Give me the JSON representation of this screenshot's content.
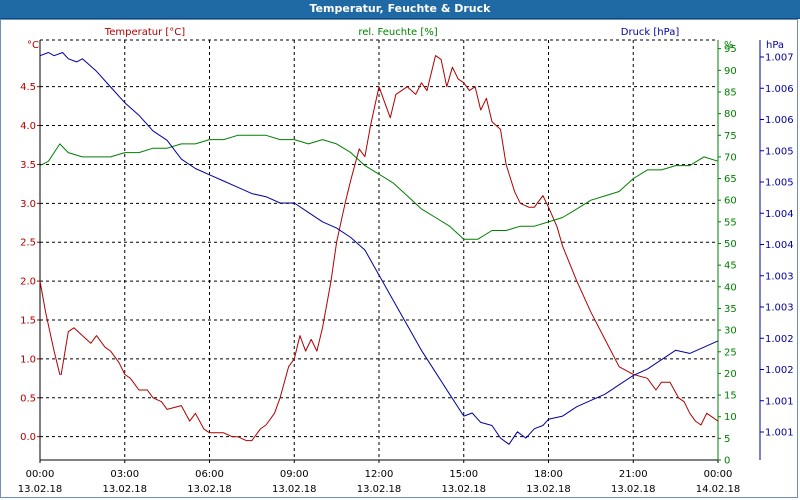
{
  "window": {
    "title": "Temperatur, Feuchte & Druck"
  },
  "colors": {
    "temperature": "#b00000",
    "humidity": "#008000",
    "pressure": "#0000a0",
    "grid": "#000000"
  },
  "chart_data": {
    "type": "line",
    "grid": true,
    "x_ticks": [
      {
        "time": "00:00",
        "date": "13.02.18"
      },
      {
        "time": "03:00",
        "date": "13.02.18"
      },
      {
        "time": "06:00",
        "date": "13.02.18"
      },
      {
        "time": "09:00",
        "date": "13.02.18"
      },
      {
        "time": "12:00",
        "date": "13.02.18"
      },
      {
        "time": "15:00",
        "date": "13.02.18"
      },
      {
        "time": "18:00",
        "date": "13.02.18"
      },
      {
        "time": "21:00",
        "date": "13.02.18"
      },
      {
        "time": "00:00",
        "date": "14.02.18"
      }
    ],
    "x_range_hours": [
      0,
      24
    ],
    "axes": {
      "temperature": {
        "label": "Temperatur [°C]",
        "unit": "°C",
        "ylim": [
          -0.3,
          5.1
        ],
        "ticks": [
          "0.0",
          "0.5",
          "1.0",
          "1.5",
          "2.0",
          "2.5",
          "3.0",
          "3.5",
          "4.0",
          "4.5"
        ]
      },
      "humidity": {
        "label": "rel. Feuchte [%]",
        "unit": "%",
        "ylim": [
          0,
          97
        ],
        "ticks": [
          "0",
          "5",
          "10",
          "15",
          "20",
          "25",
          "30",
          "35",
          "40",
          "45",
          "50",
          "55",
          "60",
          "65",
          "70",
          "75",
          "80",
          "85",
          "90",
          "95"
        ]
      },
      "pressure": {
        "label": "Druck [hPa]",
        "unit": "hPa",
        "ylim": [
          1000.5,
          1007.2
        ],
        "ticks": [
          "1.001",
          "1.001",
          "1.002",
          "1.002",
          "1.003",
          "1.003",
          "1.004",
          "1.004",
          "1.005",
          "1.005",
          "1.006",
          "1.006",
          "1.007"
        ]
      }
    },
    "series": [
      {
        "name": "Temperatur [°C]",
        "axis": "temperature",
        "x": [
          0,
          0.2,
          0.5,
          0.7,
          0.75,
          1.0,
          1.2,
          1.5,
          1.8,
          2.0,
          2.3,
          2.5,
          2.8,
          3.0,
          3.2,
          3.5,
          3.8,
          4.0,
          4.3,
          4.5,
          5.0,
          5.3,
          5.5,
          5.8,
          6.0,
          6.5,
          6.8,
          7.0,
          7.3,
          7.5,
          7.8,
          8.0,
          8.3,
          8.5,
          8.8,
          9.0,
          9.2,
          9.4,
          9.6,
          9.8,
          10.0,
          10.3,
          10.5,
          10.8,
          11.0,
          11.3,
          11.5,
          11.7,
          12.0,
          12.2,
          12.4,
          12.6,
          12.8,
          13.0,
          13.3,
          13.5,
          13.7,
          14.0,
          14.2,
          14.4,
          14.6,
          14.8,
          15.0,
          15.2,
          15.4,
          15.6,
          15.8,
          16.0,
          16.3,
          16.5,
          16.8,
          17.0,
          17.3,
          17.5,
          17.8,
          18.0,
          18.3,
          18.5,
          19.0,
          19.5,
          20.0,
          20.5,
          21.0,
          21.5,
          21.8,
          22.0,
          22.3,
          22.6,
          22.8,
          23.0,
          23.2,
          23.4,
          23.6,
          23.8,
          24.0
        ],
        "values": [
          2.0,
          1.6,
          1.1,
          0.8,
          0.8,
          1.35,
          1.4,
          1.3,
          1.2,
          1.3,
          1.15,
          1.1,
          0.95,
          0.8,
          0.75,
          0.6,
          0.6,
          0.5,
          0.45,
          0.35,
          0.4,
          0.2,
          0.3,
          0.1,
          0.05,
          0.05,
          0.0,
          0.0,
          -0.05,
          -0.05,
          0.1,
          0.15,
          0.3,
          0.5,
          0.9,
          1.0,
          1.3,
          1.1,
          1.25,
          1.1,
          1.4,
          2.0,
          2.5,
          3.0,
          3.3,
          3.7,
          3.6,
          4.0,
          4.5,
          4.3,
          4.1,
          4.4,
          4.45,
          4.5,
          4.4,
          4.55,
          4.45,
          4.9,
          4.85,
          4.5,
          4.75,
          4.6,
          4.55,
          4.45,
          4.5,
          4.2,
          4.35,
          4.05,
          3.95,
          3.5,
          3.15,
          3.0,
          2.95,
          2.95,
          3.1,
          2.95,
          2.7,
          2.45,
          2.0,
          1.6,
          1.25,
          0.9,
          0.8,
          0.75,
          0.6,
          0.7,
          0.7,
          0.5,
          0.45,
          0.3,
          0.2,
          0.15,
          0.3,
          0.25,
          0.2
        ]
      },
      {
        "name": "rel. Feuchte [%]",
        "axis": "humidity",
        "x": [
          0,
          0.3,
          0.5,
          0.7,
          1.0,
          1.5,
          2.0,
          2.5,
          3.0,
          3.5,
          4.0,
          4.5,
          5.0,
          5.5,
          6.0,
          6.5,
          7.0,
          7.5,
          8.0,
          8.5,
          9.0,
          9.5,
          10.0,
          10.5,
          11.0,
          11.5,
          12.0,
          12.5,
          13.0,
          13.5,
          14.0,
          14.5,
          15.0,
          15.5,
          16.0,
          16.5,
          17.0,
          17.5,
          18.0,
          18.5,
          19.0,
          19.5,
          20.0,
          20.5,
          21.0,
          21.5,
          22.0,
          22.5,
          23.0,
          23.5,
          24.0
        ],
        "values": [
          68,
          69,
          71,
          73,
          71,
          70,
          70,
          70,
          71,
          71,
          72,
          72,
          73,
          73,
          74,
          74,
          75,
          75,
          75,
          74,
          74,
          73,
          74,
          73,
          71,
          68,
          66,
          64,
          61,
          58,
          56,
          54,
          51,
          51,
          53,
          53,
          54,
          54,
          55,
          56,
          58,
          60,
          61,
          62,
          65,
          67,
          67,
          68,
          68,
          70,
          69
        ]
      },
      {
        "name": "Druck [hPa]",
        "axis": "pressure",
        "x": [
          0,
          0.3,
          0.5,
          0.8,
          1.0,
          1.3,
          1.5,
          2.0,
          2.5,
          3.0,
          3.5,
          4.0,
          4.5,
          5.0,
          5.5,
          6.0,
          6.5,
          7.0,
          7.5,
          8.0,
          8.5,
          9.0,
          9.5,
          10.0,
          10.5,
          11.0,
          11.5,
          12.0,
          12.5,
          13.0,
          13.5,
          14.0,
          14.5,
          15.0,
          15.3,
          15.6,
          16.0,
          16.3,
          16.6,
          16.9,
          17.2,
          17.5,
          17.8,
          18.0,
          18.5,
          19.0,
          19.5,
          20.0,
          20.5,
          21.0,
          21.5,
          22.0,
          22.5,
          23.0,
          23.5,
          24.0
        ],
        "values": [
          1006.95,
          1007.0,
          1006.95,
          1007.0,
          1006.9,
          1006.85,
          1006.9,
          1006.7,
          1006.45,
          1006.2,
          1006.0,
          1005.75,
          1005.6,
          1005.3,
          1005.15,
          1005.05,
          1004.95,
          1004.85,
          1004.75,
          1004.7,
          1004.6,
          1004.6,
          1004.45,
          1004.3,
          1004.2,
          1004.05,
          1003.85,
          1003.45,
          1003.05,
          1002.65,
          1002.25,
          1001.9,
          1001.55,
          1001.2,
          1001.25,
          1001.1,
          1001.05,
          1000.85,
          1000.75,
          1000.95,
          1000.85,
          1001.0,
          1001.05,
          1001.15,
          1001.2,
          1001.35,
          1001.45,
          1001.55,
          1001.7,
          1001.85,
          1001.95,
          1002.1,
          1002.25,
          1002.2,
          1002.3,
          1002.4
        ]
      }
    ]
  }
}
